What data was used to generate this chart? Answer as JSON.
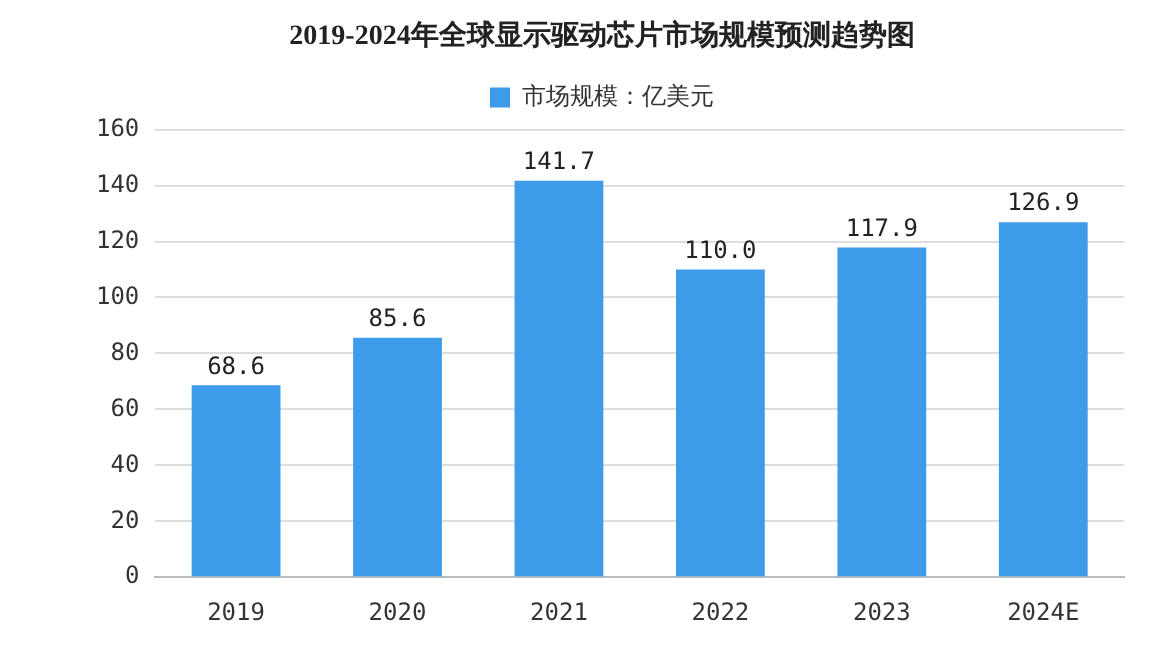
{
  "chart_data": {
    "type": "bar",
    "title": "2019-2024年全球显示驱动芯片市场规模预测趋势图",
    "categories": [
      "2019",
      "2020",
      "2021",
      "2022",
      "2023",
      "2024E"
    ],
    "series": [
      {
        "name": "市场规模：亿美元",
        "color": "#3d9be9",
        "values": [
          68.6,
          85.6,
          141.7,
          110.0,
          117.9,
          126.9
        ],
        "value_labels": [
          "68.6",
          "85.6",
          "141.7",
          "110.0",
          "117.9",
          "126.9"
        ]
      }
    ],
    "ylim": [
      0,
      160
    ],
    "yticks": [
      0,
      20,
      40,
      60,
      80,
      100,
      120,
      140,
      160
    ],
    "grid": "y",
    "legend": "top"
  }
}
